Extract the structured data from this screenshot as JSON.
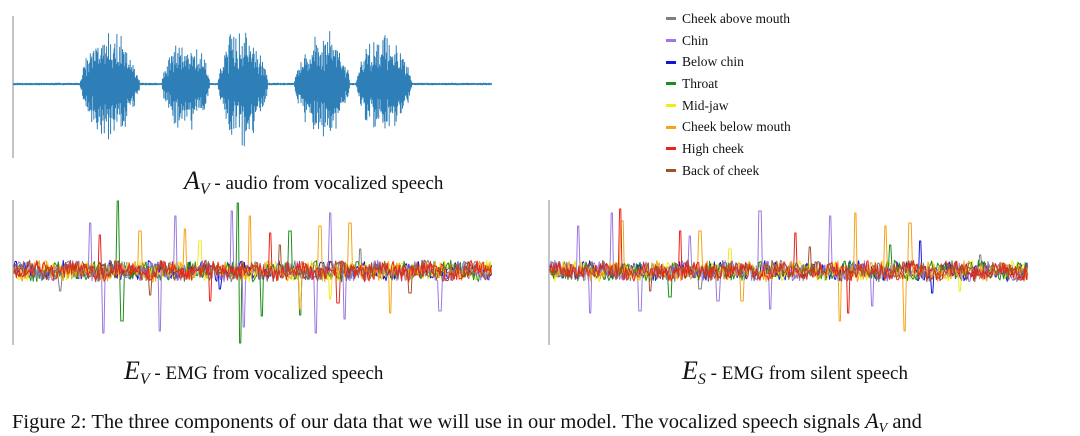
{
  "panels": {
    "audio": {
      "symbol": "A",
      "subscript": "V",
      "caption": " - audio from vocalized speech",
      "color": "#2e7fb8"
    },
    "emg_vocal": {
      "symbol": "E",
      "subscript": "V",
      "caption": " - EMG from vocalized speech"
    },
    "emg_silent": {
      "symbol": "E",
      "subscript": "S",
      "caption": " - EMG from silent speech"
    }
  },
  "legend": {
    "items": [
      {
        "label": "Cheek above mouth",
        "color": "#7f7f7f"
      },
      {
        "label": "Chin",
        "color": "#9b79e0"
      },
      {
        "label": "Below chin",
        "color": "#1414d8"
      },
      {
        "label": "Throat",
        "color": "#1e8c1e"
      },
      {
        "label": "Mid-jaw",
        "color": "#f2ea1a"
      },
      {
        "label": "Cheek below mouth",
        "color": "#f5a418"
      },
      {
        "label": "High cheek",
        "color": "#e8241c"
      },
      {
        "label": "Back of cheek",
        "color": "#a0522d"
      }
    ]
  },
  "figure_caption": {
    "prefix": "Figure 2: The three components of our data that we will use in our model. The vocalized speech signals ",
    "symbol": "A",
    "subscript": "V",
    "suffix": " and"
  }
}
